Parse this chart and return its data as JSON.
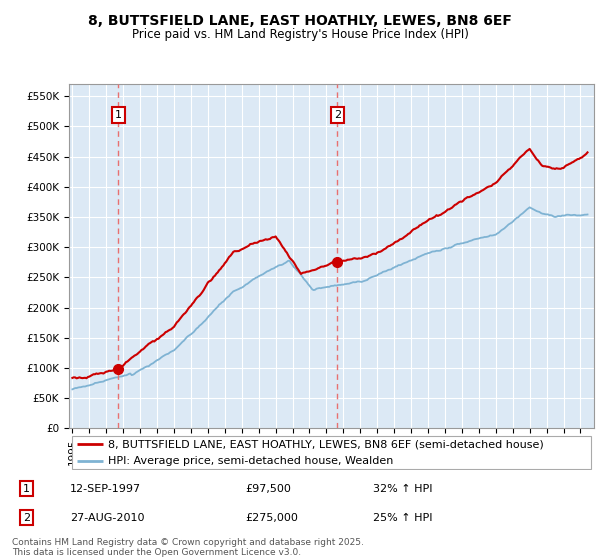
{
  "title": "8, BUTTSFIELD LANE, EAST HOATHLY, LEWES, BN8 6EF",
  "subtitle": "Price paid vs. HM Land Registry's House Price Index (HPI)",
  "line1_label": "8, BUTTSFIELD LANE, EAST HOATHLY, LEWES, BN8 6EF (semi-detached house)",
  "line2_label": "HPI: Average price, semi-detached house, Wealden",
  "line1_color": "#cc0000",
  "line2_color": "#7fb3d3",
  "transaction1_year": 1997.71,
  "transaction1_value": 97500,
  "transaction1_date": "12-SEP-1997",
  "transaction1_price": "£97,500",
  "transaction1_hpi": "32% ↑ HPI",
  "transaction2_year": 2010.65,
  "transaction2_value": 275000,
  "transaction2_date": "27-AUG-2010",
  "transaction2_price": "£275,000",
  "transaction2_hpi": "25% ↑ HPI",
  "yticks": [
    0,
    50000,
    100000,
    150000,
    200000,
    250000,
    300000,
    350000,
    400000,
    450000,
    500000,
    550000
  ],
  "xlim_left": 1994.8,
  "xlim_right": 2025.8,
  "ylim": [
    0,
    570000
  ],
  "background_color": "#ffffff",
  "chart_bg_color": "#dce9f5",
  "grid_color": "#ffffff",
  "vline_color": "#e87070",
  "marker_border_color": "#cc0000",
  "footer": "Contains HM Land Registry data © Crown copyright and database right 2025.\nThis data is licensed under the Open Government Licence v3.0.",
  "title_fontsize": 10,
  "subtitle_fontsize": 8.5,
  "tick_fontsize": 7.5,
  "legend_fontsize": 8,
  "footer_fontsize": 6.5
}
